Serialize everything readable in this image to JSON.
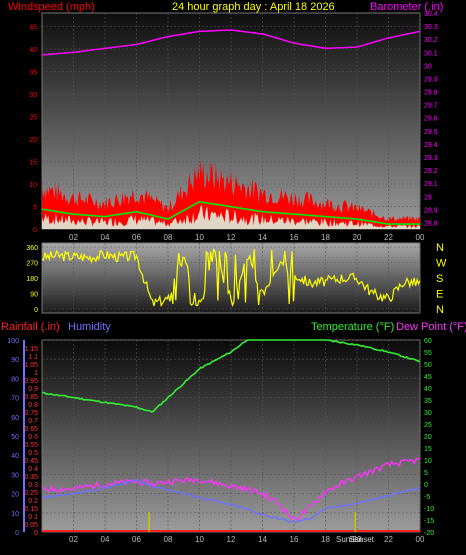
{
  "header": {
    "left_label": "Windspeed (mph)",
    "title": "24 hour graph day : April 18 2026",
    "right_label": "Barometer (.in)"
  },
  "colors": {
    "windspeed": "#ff0000",
    "gust": "#ff0000",
    "avg": "#00ee00",
    "light": "#ddeedd",
    "barometer": "#ff00ff",
    "direction": "#ffff00",
    "rainfall": "#ff2020",
    "humidity": "#7070ff",
    "temperature": "#33ee33",
    "dewpoint": "#ff33ff",
    "sun_marker": "#c8c800"
  },
  "x_ticks": [
    "02",
    "04",
    "06",
    "08",
    "10",
    "12",
    "14",
    "16",
    "18",
    "20",
    "22",
    "00"
  ],
  "panel1": {
    "wind_ticks": [
      "0",
      "5",
      "10",
      "15",
      "20",
      "25",
      "30",
      "35",
      "40",
      "45"
    ],
    "baro_ticks": [
      "28.8",
      "28.9",
      "29",
      "29.1",
      "29.2",
      "29.3",
      "29.4",
      "29.5",
      "29.6",
      "29.7",
      "29.8",
      "29.9",
      "30",
      "30.1",
      "30.2",
      "30.3",
      "30.4"
    ]
  },
  "panel2": {
    "deg_ticks": [
      "360",
      "270",
      "180",
      "90",
      "0"
    ],
    "compass": [
      "N",
      "W",
      "S",
      "E",
      "N"
    ]
  },
  "panel3": {
    "rain_label": "Rainfall (.in)",
    "humidity_label": "Humidity",
    "temp_label": "Temperature (°F)",
    "dew_label": "Dew Point (°F)",
    "humidity_ticks": [
      "0",
      "10",
      "20",
      "30",
      "40",
      "50",
      "60",
      "70",
      "80",
      "90",
      "100"
    ],
    "rain_ticks": [
      "0",
      "0.05",
      "0.1",
      "0.15",
      "0.2",
      "0.25",
      "0.3",
      "0.35",
      "0.4",
      "0.45",
      "0.5",
      "0.55",
      "0.6",
      "0.65",
      "0.7",
      "0.75",
      "0.8",
      "0.85",
      "0.9",
      "0.95",
      "1",
      "1.05",
      "1.1",
      "1.15"
    ],
    "temp_ticks": [
      "-20",
      "-15",
      "-10",
      "-5",
      "0",
      "5",
      "10",
      "15",
      "20",
      "25",
      "30",
      "35",
      "40",
      "45",
      "50",
      "55",
      "60"
    ],
    "sunrise_label": "Sunrise",
    "sunset_label": "Sunset"
  },
  "chart_data": [
    {
      "type": "line",
      "x_hours": [
        0,
        2,
        4,
        6,
        8,
        10,
        12,
        14,
        16,
        18,
        20,
        22,
        24
      ],
      "wind_ylim": [
        0,
        48
      ],
      "baro_ylim": [
        28.75,
        30.4
      ],
      "series": [
        {
          "name": "Windspeed (mph)",
          "values": [
            8,
            6,
            5,
            7,
            4,
            11,
            9,
            7,
            6,
            5,
            4,
            2,
            2
          ]
        },
        {
          "name": "Barometer (.in)",
          "values": [
            30.08,
            30.1,
            30.13,
            30.16,
            30.22,
            30.26,
            30.27,
            30.24,
            30.17,
            30.13,
            30.14,
            30.21,
            30.26
          ]
        }
      ]
    },
    {
      "type": "scatter",
      "x_hours": [
        0,
        1,
        2,
        3,
        4,
        5,
        6,
        7,
        8,
        9,
        10,
        11,
        12,
        13,
        14,
        15,
        16,
        17,
        18,
        19,
        20,
        21,
        22,
        23,
        24
      ],
      "ylim": [
        0,
        360
      ],
      "series": [
        {
          "name": "Wind direction",
          "values": [
            300,
            310,
            305,
            300,
            315,
            300,
            310,
            30,
            60,
            300,
            40,
            320,
            60,
            300,
            90,
            260,
            200,
            150,
            160,
            180,
            180,
            90,
            60,
            160,
            150
          ]
        }
      ]
    },
    {
      "type": "line",
      "x_hours": [
        0,
        2,
        4,
        6,
        7,
        8,
        10,
        12,
        13,
        14,
        15,
        16,
        17,
        18,
        20,
        22,
        24
      ],
      "humidity_ylim": [
        0,
        100
      ],
      "temp_ylim": [
        -20,
        60
      ],
      "series": [
        {
          "name": "Temperature (°F)",
          "values": [
            38,
            36,
            34,
            32,
            30,
            36,
            48,
            55,
            60,
            68,
            72,
            70,
            64,
            60,
            58,
            55,
            51
          ]
        },
        {
          "name": "Dew Point (°F)",
          "values": [
            -2,
            -2,
            0,
            1,
            0,
            1,
            2,
            -1,
            -2,
            -4,
            -8,
            -15,
            -10,
            -3,
            3,
            8,
            10
          ]
        },
        {
          "name": "Humidity",
          "values": [
            18,
            20,
            23,
            27,
            24,
            22,
            18,
            14,
            12,
            9,
            7,
            5,
            7,
            12,
            15,
            19,
            23
          ]
        },
        {
          "name": "Rainfall (.in)",
          "values": [
            0,
            0,
            0,
            0,
            0,
            0,
            0,
            0,
            0,
            0,
            0,
            0,
            0,
            0,
            0,
            0,
            0
          ]
        }
      ]
    }
  ]
}
